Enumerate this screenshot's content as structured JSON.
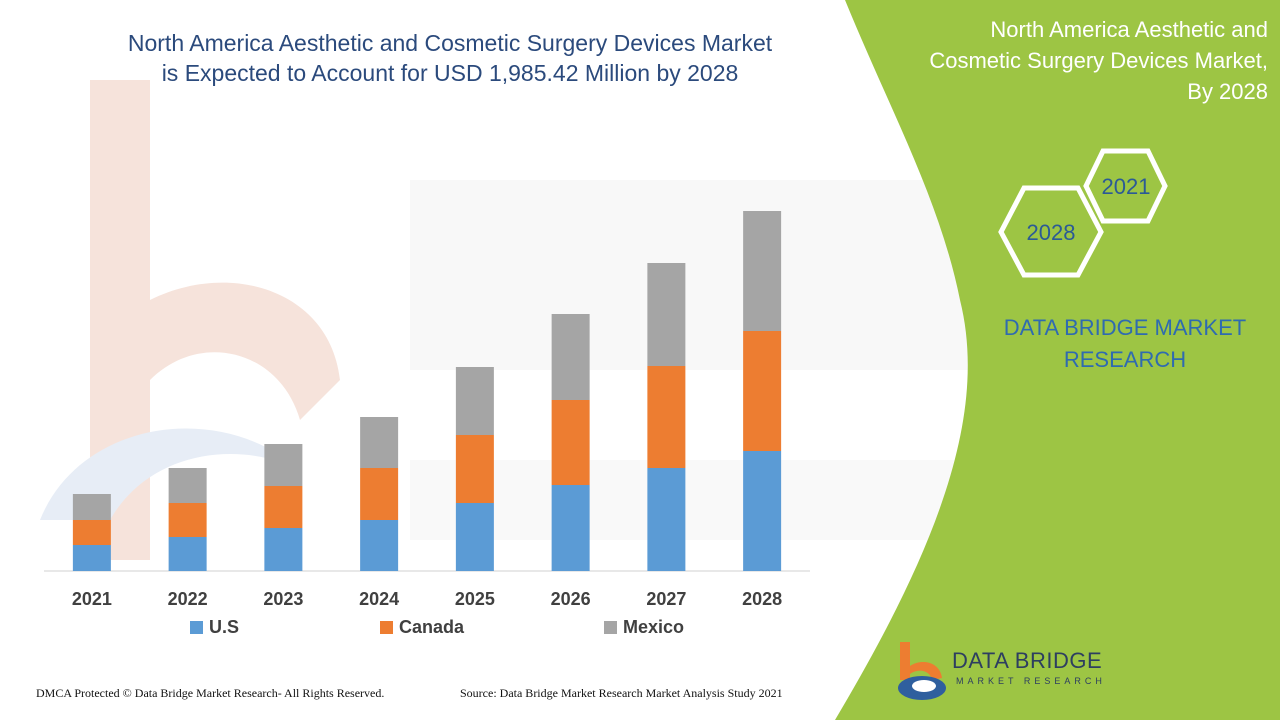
{
  "header": {
    "title_line1": "North America Aesthetic and Cosmetic Surgery Devices Market",
    "title_line2": "is Expected to Account for USD 1,985.42 Million by 2028"
  },
  "side_panel": {
    "title_line1": "North America Aesthetic and",
    "title_line2": "Cosmetic Surgery Devices Market,",
    "title_line3": "By 2028",
    "hex_year_1": "2021",
    "hex_year_2": "2028",
    "brand_line1": "DATA BRIDGE MARKET",
    "brand_line2": "RESEARCH"
  },
  "colors": {
    "us": "#5b9bd5",
    "canada": "#ed7d31",
    "mexico": "#a5a5a5",
    "panel_green": "#9dc544"
  },
  "chart_data": {
    "type": "bar",
    "stacked": true,
    "categories": [
      "2021",
      "2022",
      "2023",
      "2024",
      "2025",
      "2026",
      "2027",
      "2028"
    ],
    "series": [
      {
        "name": "U.S",
        "values": [
          26,
          34,
          43,
          51,
          68,
          86,
          103,
          120
        ]
      },
      {
        "name": "Canada",
        "values": [
          25,
          34,
          42,
          52,
          68,
          85,
          102,
          120
        ]
      },
      {
        "name": "Mexico",
        "values": [
          26,
          35,
          42,
          51,
          68,
          86,
          103,
          120
        ]
      }
    ],
    "legend_position": "bottom",
    "grid": false,
    "y_axis_shown": false
  },
  "footer": {
    "left": "DMCA Protected © Data Bridge Market Research- All Rights Reserved.",
    "right": "Source: Data Bridge Market Research Market Analysis Study 2021"
  },
  "logo": {
    "name": "DATA BRIDGE",
    "tagline": "MARKET RESEARCH"
  }
}
